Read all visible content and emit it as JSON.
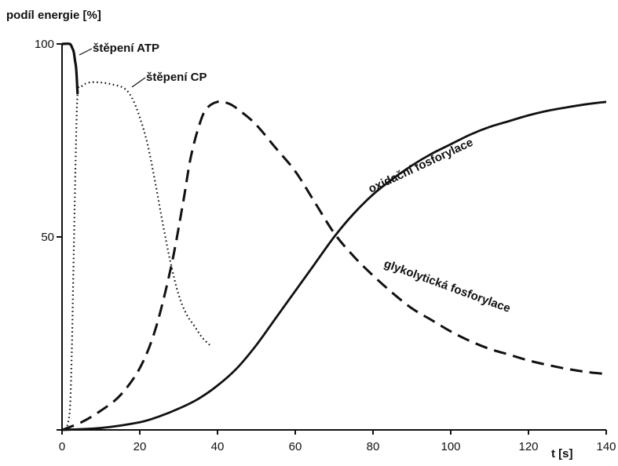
{
  "chart_data": {
    "type": "line",
    "ylabel": "podíl energie [%]",
    "xlabel": "t [s]",
    "xlim": [
      0,
      140
    ],
    "ylim": [
      0,
      100
    ],
    "x_ticks": [
      0,
      20,
      40,
      60,
      80,
      100,
      120,
      140
    ],
    "x_tick_labels": [
      "0",
      "20",
      "40",
      "60",
      "80",
      "100",
      "120",
      "140"
    ],
    "y_ticks": [
      0,
      50,
      100
    ],
    "y_tick_labels": [
      "",
      "50",
      "100"
    ],
    "grid": false,
    "legend": "none",
    "series": [
      {
        "name": "štěpení ATP",
        "style": "solid-thick",
        "color": "#111111",
        "x": [
          0,
          2,
          2.6,
          3,
          3.3,
          3.6,
          3.8,
          3.9,
          4.0
        ],
        "y": [
          100,
          100,
          99,
          98,
          96,
          94,
          91,
          89,
          87
        ]
      },
      {
        "name": "štěpení CP",
        "style": "dotted",
        "color": "#111111",
        "x": [
          1,
          2,
          2.5,
          3,
          3.5,
          4,
          5,
          7,
          10,
          13,
          16,
          18,
          20,
          22,
          24,
          26,
          28,
          30,
          32,
          34,
          36,
          38
        ],
        "y": [
          0,
          5,
          20,
          45,
          70,
          87,
          89,
          90,
          90,
          89.5,
          88.5,
          86,
          81,
          74,
          64,
          53,
          43,
          35,
          30,
          27,
          24,
          22
        ]
      },
      {
        "name": "glykolytická fosforylace",
        "style": "dashed",
        "color": "#111111",
        "x": [
          0,
          5,
          10,
          15,
          20,
          24,
          28,
          31,
          33,
          35,
          37,
          40,
          43,
          46,
          50,
          55,
          60,
          65,
          70,
          75,
          80,
          85,
          90,
          95,
          100,
          105,
          110,
          115,
          120,
          125,
          130,
          135,
          140
        ],
        "y": [
          0,
          2,
          5,
          9,
          16,
          26,
          42,
          58,
          70,
          78,
          83,
          85,
          84.5,
          82.5,
          79,
          73,
          67,
          59,
          51,
          45,
          40,
          35.5,
          31.5,
          28.5,
          25.5,
          23,
          21,
          19.5,
          18,
          16.8,
          15.8,
          15,
          14.5
        ]
      },
      {
        "name": "oxidační fosforylace",
        "style": "solid",
        "color": "#111111",
        "x": [
          0,
          10,
          20,
          25,
          30,
          35,
          40,
          45,
          50,
          55,
          60,
          65,
          70,
          75,
          80,
          85,
          90,
          95,
          100,
          105,
          110,
          115,
          120,
          125,
          130,
          135,
          140
        ],
        "y": [
          0,
          0.5,
          2,
          3.5,
          5.5,
          8,
          11.5,
          16,
          22,
          29,
          36,
          43,
          50,
          56,
          61,
          65,
          68.5,
          71.5,
          74,
          76.5,
          78.5,
          80,
          81.5,
          82.7,
          83.6,
          84.4,
          85
        ]
      }
    ],
    "annotations": [
      {
        "text": "štěpení ATP",
        "series": "štěpení ATP"
      },
      {
        "text": "štěpení CP",
        "series": "štěpení CP"
      },
      {
        "text": "oxidační fosforylace",
        "series": "oxidační fosforylace"
      },
      {
        "text": "glykolytická fosforylace",
        "series": "glykolytická fosforylace"
      }
    ]
  }
}
